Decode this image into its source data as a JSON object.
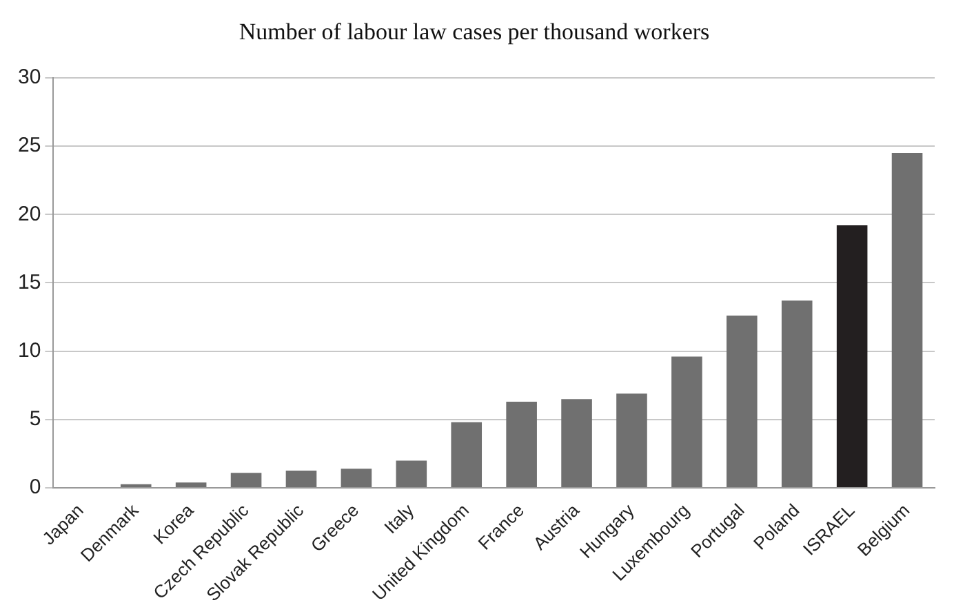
{
  "chart_data": {
    "type": "bar",
    "title": "Number of labour law cases per thousand workers",
    "categories": [
      "Japan",
      "Denmark",
      "Korea",
      "Czech Republic",
      "Slovak Republic",
      "Greece",
      "Italy",
      "United Kingdom",
      "France",
      "Austria",
      "Hungary",
      "Luxembourg",
      "Portugal",
      "Poland",
      "ISRAEL",
      "Belgium"
    ],
    "values": [
      0.05,
      0.27,
      0.4,
      1.1,
      1.26,
      1.4,
      2.0,
      4.8,
      6.3,
      6.5,
      6.9,
      9.6,
      12.6,
      13.7,
      19.2,
      24.5
    ],
    "colors": [
      "#707070",
      "#707070",
      "#707070",
      "#707070",
      "#707070",
      "#707070",
      "#707070",
      "#707070",
      "#707070",
      "#707070",
      "#707070",
      "#707070",
      "#707070",
      "#707070",
      "#231f20",
      "#707070"
    ],
    "ylim": [
      0,
      30
    ],
    "yticks": [
      0,
      5,
      10,
      15,
      20,
      25,
      30
    ],
    "grid": "y",
    "legend": false
  }
}
